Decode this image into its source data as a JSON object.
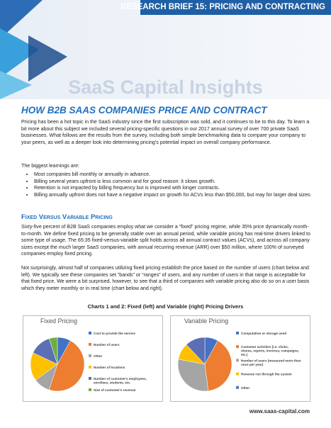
{
  "header": {
    "banner": "RESEARCH BRIEF 15: PRICING AND CONTRACTING",
    "brand": "SaaS Capital Insights"
  },
  "title": "HOW B2B SAAS COMPANIES PRICE AND CONTRACT",
  "intro": "Pricing has been a hot topic in the SaaS industry since the first subscription was sold, and it continues to be to this day. To learn a bit more about this subject we included several pricing-specific questions in our 2017 annual survey of over 700 private SaaS businesses. What follows are the results from the survey, including both simple benchmarking data to compare your company to your peers, as well as a deeper look into determining pricing's potential impact on overall company performance.",
  "learnings_lead": "The biggest learnings are:",
  "learnings": [
    "Most companies bill monthly or annually in advance.",
    "Billing several years upfront is less common and for good reason: it slows growth.",
    "Retention is not impacted by billing frequency but is improved with longer contracts.",
    "Billing annually upfront does not have a negative impact on growth for ACVs less than $50,000, but may for larger deal sizes."
  ],
  "section": "Fixed Versus Variable Pricing",
  "paragraphs": [
    "Sixty-five percent of B2B SaaS companies employ what we consider a “fixed” pricing regime, while 35% price dynamically month-to-month. We define fixed pricing to be generally stable over an annual period, while variable pricing has real-time drivers linked to some type of usage. The 65:35 fixed-versus-variable split holds across all annual contract values (ACVs), and across all company sizes except the much larger SaaS companies, with annual recurring revenue (ARR) over $50 million, where 100% of surveyed companies employ fixed pricing.",
    "Not surprisingly, almost half of companies utilizing fixed pricing establish the price based on the number of users (chart below and left). We typically see these companies set “bands” or “ranges” of users, and any number of users in that range is acceptable for that fixed price. We were a bit surprised, however, to see that a third of companies with variable pricing also do so on a user basis which they meter monthly or in real time (chart below and right)."
  ],
  "charts_caption": "Charts 1 and 2: Fixed (left) and Variable (right) Pricing Drivers",
  "charts": [
    {
      "type": "pie",
      "title": "Fixed Pricing",
      "categories": [
        "Cost to provide the service",
        "Number of users",
        "Other",
        "Number of locations",
        "Number of customer's employees, enrollees, students, etc.",
        "Size of customer's revenue"
      ],
      "values": [
        8,
        47,
        10,
        17,
        13,
        5
      ],
      "colors": [
        "#4472c4",
        "#ed7d31",
        "#a5a5a5",
        "#ffc000",
        "#5b6fb5",
        "#70ad47"
      ]
    },
    {
      "type": "pie",
      "title": "Variable Pricing",
      "categories": [
        "Computation or storage used",
        "Customer activities (i.e. clicks, shares, reports, invoices, campaigns, etc.)",
        "Number of users (measured more than once per year)",
        "Revenue run through the system",
        "Other"
      ],
      "values": [
        8,
        40,
        30,
        10,
        12
      ],
      "colors": [
        "#4472c4",
        "#ed7d31",
        "#a5a5a5",
        "#ffc000",
        "#5b6fb5"
      ]
    }
  ],
  "footer": "www.saas-capital.com"
}
